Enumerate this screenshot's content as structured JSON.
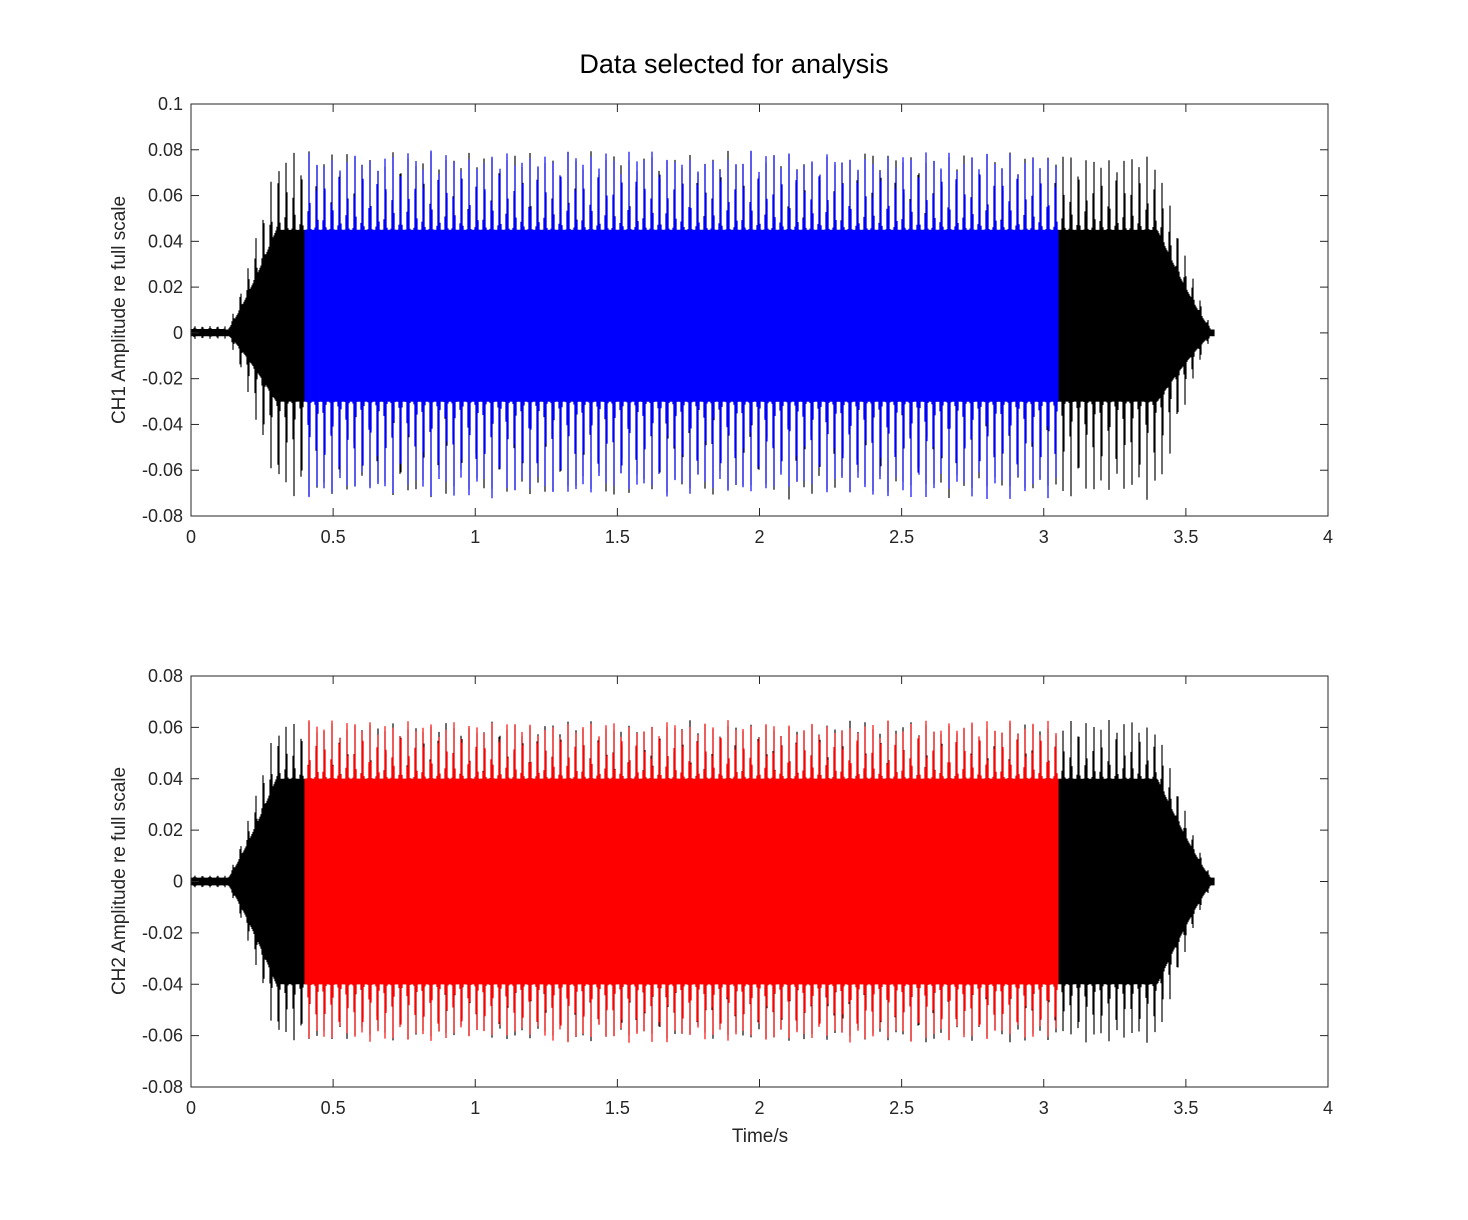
{
  "figure": {
    "title": "Data selected for analysis"
  },
  "chart_data": [
    {
      "type": "line",
      "ylabel": "CH1 Amplitude re full scale",
      "xlabel": "",
      "xlim": [
        0,
        4
      ],
      "ylim": [
        -0.08,
        0.1
      ],
      "x_ticks": [
        0,
        0.5,
        1,
        1.5,
        2,
        2.5,
        3,
        3.5,
        4
      ],
      "x_tick_labels": [
        "0",
        "0.5",
        "1",
        "1.5",
        "2",
        "2.5",
        "3",
        "3.5",
        "4"
      ],
      "y_ticks": [
        -0.08,
        -0.06,
        -0.04,
        -0.02,
        0,
        0.02,
        0.04,
        0.06,
        0.08,
        0.1
      ],
      "y_tick_labels": [
        "-0.08",
        "-0.06",
        "-0.04",
        "-0.02",
        "0",
        "0.02",
        "0.04",
        "0.06",
        "0.08",
        "0.1"
      ],
      "grid": false,
      "signal": {
        "start_s": 0.0,
        "end_s": 3.6,
        "onset_s": 0.12,
        "ramp_up_end_s": 0.3,
        "ramp_down_start_s": 3.4,
        "offset_s": 3.6,
        "peak_positive": 0.08,
        "peak_negative": -0.073,
        "dense_positive": 0.045,
        "dense_negative": -0.03,
        "pulse_period_s": 0.0268
      },
      "series": [
        {
          "role": "full-recording",
          "x_range": [
            0.0,
            3.6
          ],
          "color": "#000000"
        },
        {
          "role": "selected-for-analysis",
          "x_range": [
            0.4,
            3.05
          ],
          "color": "#0000ff"
        }
      ]
    },
    {
      "type": "line",
      "ylabel": "CH2 Amplitude re full scale",
      "xlabel": "Time/s",
      "xlim": [
        0,
        4
      ],
      "ylim": [
        -0.08,
        0.08
      ],
      "x_ticks": [
        0,
        0.5,
        1,
        1.5,
        2,
        2.5,
        3,
        3.5,
        4
      ],
      "x_tick_labels": [
        "0",
        "0.5",
        "1",
        "1.5",
        "2",
        "2.5",
        "3",
        "3.5",
        "4"
      ],
      "y_ticks": [
        -0.08,
        -0.06,
        -0.04,
        -0.02,
        0,
        0.02,
        0.04,
        0.06,
        0.08
      ],
      "y_tick_labels": [
        "-0.08",
        "-0.06",
        "-0.04",
        "-0.02",
        "0",
        "0.02",
        "0.04",
        "0.06",
        "0.08"
      ],
      "grid": false,
      "signal": {
        "start_s": 0.0,
        "end_s": 3.6,
        "onset_s": 0.12,
        "ramp_up_end_s": 0.3,
        "ramp_down_start_s": 3.4,
        "offset_s": 3.6,
        "peak_positive": 0.063,
        "peak_negative": -0.063,
        "dense_positive": 0.04,
        "dense_negative": -0.04,
        "pulse_period_s": 0.0268
      },
      "series": [
        {
          "role": "full-recording",
          "x_range": [
            0.0,
            3.6
          ],
          "color": "#000000"
        },
        {
          "role": "selected-for-analysis",
          "x_range": [
            0.4,
            3.05
          ],
          "color": "#ff0000"
        }
      ]
    }
  ]
}
